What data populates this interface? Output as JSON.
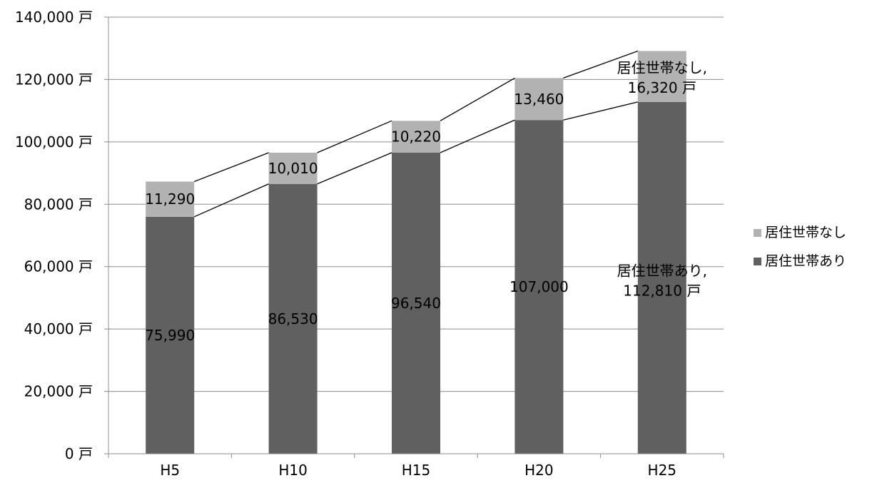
{
  "chart_data": {
    "type": "bar",
    "stacked": true,
    "categories": [
      "H5",
      "H10",
      "H15",
      "H20",
      "H25"
    ],
    "series": [
      {
        "name": "居住世帯あり",
        "values": [
          75990,
          86530,
          96540,
          107000,
          112810
        ],
        "color": "#606060"
      },
      {
        "name": "居住世帯なし",
        "values": [
          11290,
          10010,
          10220,
          13460,
          16320
        ],
        "color": "#b2b2b2"
      }
    ],
    "value_labels": {
      "居住世帯あり": [
        "75,990",
        "86,530",
        "96,540",
        "107,000",
        "112,810 戸"
      ],
      "居住世帯なし": [
        "11,290",
        "10,010",
        "10,220",
        "13,460",
        "16,320 戸"
      ]
    },
    "last_series_labels": {
      "居住世帯あり": "居住世帯あり,",
      "居住世帯なし": "居住世帯なし,"
    },
    "ylim": [
      0,
      140000
    ],
    "yticks": [
      0,
      20000,
      40000,
      60000,
      80000,
      100000,
      120000,
      140000
    ],
    "ytick_labels": [
      "0 戸",
      "20,000 戸",
      "40,000 戸",
      "60,000 戸",
      "80,000 戸",
      "100,000 戸",
      "120,000 戸",
      "140,000 戸"
    ],
    "grid": true,
    "series_lines": true,
    "legend": {
      "position": "right",
      "entries": [
        "居住世帯なし",
        "居住世帯あり"
      ]
    },
    "title": "",
    "xlabel": "",
    "ylabel": ""
  }
}
